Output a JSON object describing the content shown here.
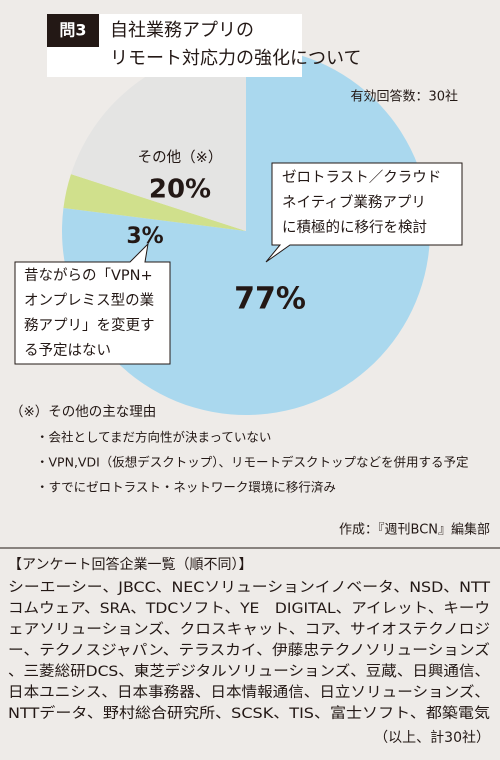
{
  "header": {
    "badge": "問3"
  },
  "chart_data": {
    "type": "pie",
    "title": [
      "自社業務アプリの",
      "リモート対応力の強化について"
    ],
    "subtitle": "有効回答数：30社",
    "categories": [
      "ゼロトラスト／クラウド\nネイティブ業務アプリ\nに積極的に移行を検討",
      "昔ながらの「VPN+\nオンプレミス型の業\n務アプリ」を変更す\nる予定はない",
      "その他（※）"
    ],
    "values": [
      77,
      3,
      20
    ],
    "value_labels": [
      "77%",
      "3%",
      "20%"
    ],
    "colors": [
      "#aad8ee",
      "#d0e08c",
      "#e4e4e3"
    ]
  },
  "notes": {
    "title": "（※）その他の主な理由",
    "items": [
      "・会社としてまだ方向性が決まっていない",
      "・VPN,VDI（仮想デスクトップ）、リモートデスクトップなどを併用する予定",
      "・すでにゼロトラスト・ネットワーク環境に移行済み"
    ]
  },
  "credit": "作成：『週刊BCN』編集部",
  "companies": {
    "heading": "【アンケート回答企業一覧（順不同）】",
    "lines": [
      "シーエーシー、JBCC、NECソリューションイノベータ、NSD、NTT",
      "コムウェア、SRA、TDCソフト、YE　DIGITAL、アイレット、キーウ",
      "ェアソリューションズ、クロスキャット、コア、サイオステクノロジ",
      "ー、テクノスジャパン、テラスカイ、伊藤忠テクノソリューションズ",
      "、三菱総研DCS、東芝デジタルソリューションズ、豆蔵、日興通信、",
      "日本ユニシス、日本事務器、日本情報通信、日立ソリューションズ、",
      "NTTデータ、野村総合研究所、SCSK、TIS、富士ソフト、都築電気"
    ],
    "total": "（以上、計30社）"
  }
}
